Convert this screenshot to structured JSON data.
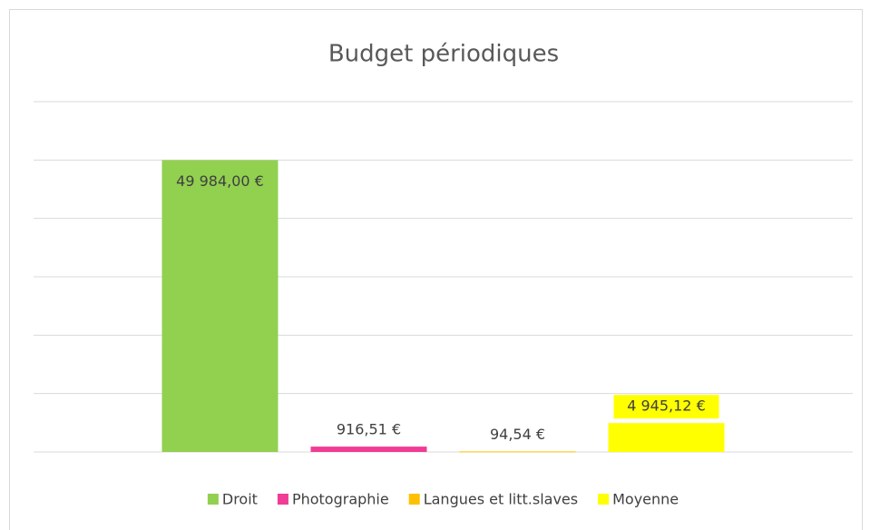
{
  "chart_data": {
    "type": "bar",
    "title": "Budget périodiques",
    "series": [
      {
        "name": "Droit",
        "color": "#92d050",
        "values": [
          49984.0
        ],
        "value_labels": [
          "49 984,00 €"
        ]
      },
      {
        "name": "Photographie",
        "color": "#f03c96",
        "values": [
          916.51
        ],
        "value_labels": [
          "916,51 €"
        ]
      },
      {
        "name": "Langues et litt.slaves",
        "color": "#ffc000",
        "values": [
          94.54
        ],
        "value_labels": [
          "94,54 €"
        ]
      },
      {
        "name": "Moyenne",
        "color": "#ffff00",
        "values": [
          4945.12
        ],
        "value_labels": [
          "4 945,12 €"
        ]
      }
    ],
    "ylim": [
      0,
      60000
    ],
    "yticks": [
      0,
      10000,
      20000,
      30000,
      40000,
      50000,
      60000
    ],
    "grid": true,
    "legend": "bottom"
  }
}
